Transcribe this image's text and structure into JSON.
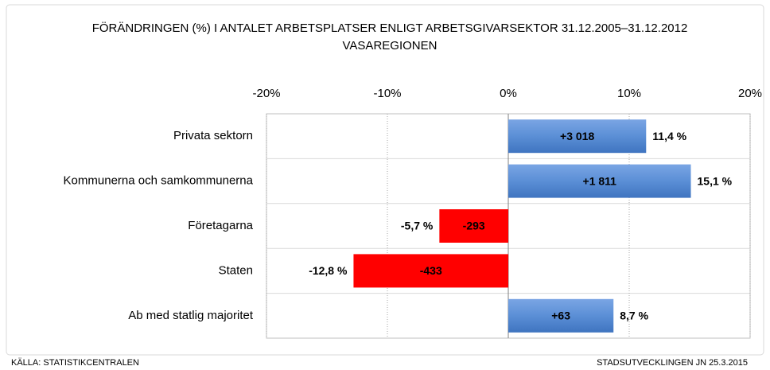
{
  "chart_data": {
    "type": "bar",
    "orientation": "horizontal",
    "title": "FÖRÄNDRINGEN (%) I ANTALET ARBETSPLATSER ENLIGT ARBETSGIVARSEKTOR 31.12.2005–31.12.2012",
    "subtitle": "VASAREGIONEN",
    "categories": [
      "Privata sektorn",
      "Kommunerna och samkommunerna",
      "Företagarna",
      "Staten",
      "Ab med statlig majoritet"
    ],
    "values": [
      11.4,
      15.1,
      -5.7,
      -12.8,
      8.7
    ],
    "value_labels": [
      "11,4 %",
      "15,1 %",
      "-5,7 %",
      "-12,8 %",
      "8,7 %"
    ],
    "counts": {
      "values": [
        3018,
        1811,
        -293,
        -433,
        63
      ],
      "value_labels": [
        "+3 018",
        "+1 811",
        "-293",
        "-433",
        "+63"
      ]
    },
    "positive_color": "#5b8fd6",
    "negative_color": "#ff0000",
    "xlim": [
      -20,
      20
    ],
    "xticks": [
      {
        "value": -20,
        "label": "-20%"
      },
      {
        "value": -10,
        "label": "-10%"
      },
      {
        "value": 0,
        "label": "0%"
      },
      {
        "value": 10,
        "label": "10%"
      },
      {
        "value": 20,
        "label": "20%"
      }
    ],
    "grid": true,
    "source": "KÄLLA: STATISTIKCENTRALEN",
    "credit": "STADSUTVECKLINGEN JN 25.3.2015"
  }
}
